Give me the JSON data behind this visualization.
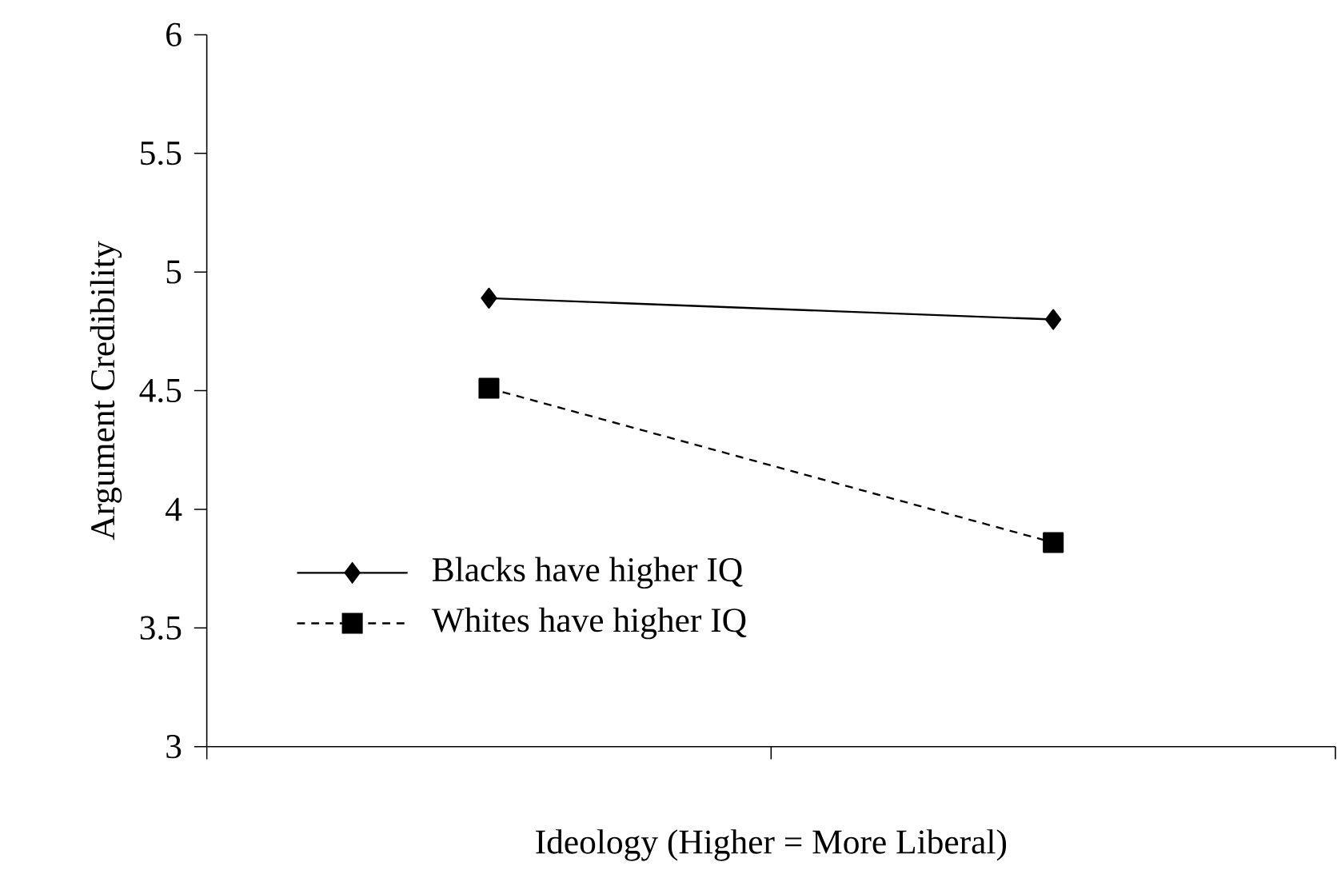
{
  "chart_data": {
    "type": "line",
    "xlabel": "Ideology (Higher = More Liberal)",
    "ylabel": "Argument Credibility",
    "categories": [
      null,
      null
    ],
    "series": [
      {
        "name": "Blacks have higher IQ",
        "color": "#000000",
        "values": [
          4.89,
          4.8
        ],
        "marker": "diamond",
        "line_style": "solid"
      },
      {
        "name": "Whites have higher IQ",
        "color": "#000000",
        "values": [
          4.51,
          3.86
        ],
        "marker": "square",
        "line_style": "dashed"
      }
    ],
    "ylim": [
      3,
      6
    ],
    "yticks": [
      3,
      3.5,
      4,
      4.5,
      5,
      5.5,
      6
    ],
    "grid": false,
    "legend": "bottom left"
  }
}
